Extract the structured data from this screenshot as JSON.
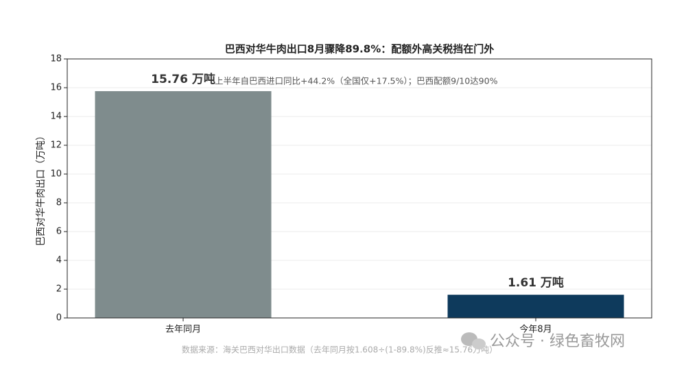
{
  "chart_data": {
    "type": "bar",
    "title": "巴西对华牛肉出口8月骤降89.8%：配额外高关税挡在门外",
    "y_label": "巴西对华牛肉出口（万吨）",
    "categories": [
      "去年同月",
      "今年8月"
    ],
    "values": [
      15.76,
      1.61
    ],
    "value_labels": [
      "15.76 万吨",
      "1.61 万吨"
    ],
    "colors": [
      "#7f8c8d",
      "#0e3a5c"
    ],
    "ylim": [
      0,
      18
    ],
    "yticks": [
      0,
      2,
      4,
      6,
      8,
      10,
      12,
      14,
      16,
      18
    ],
    "grid": true,
    "annotation": "上半年自巴西进口同比+44.2%（全国仅+17.5%）；巴西配额9/10达90%",
    "source": "数据来源：海关巴西对华出口数据（去年同月按1.608÷(1-89.8%)反推≈15.76万吨）",
    "watermark": "公众号 · 绿色畜牧网"
  }
}
